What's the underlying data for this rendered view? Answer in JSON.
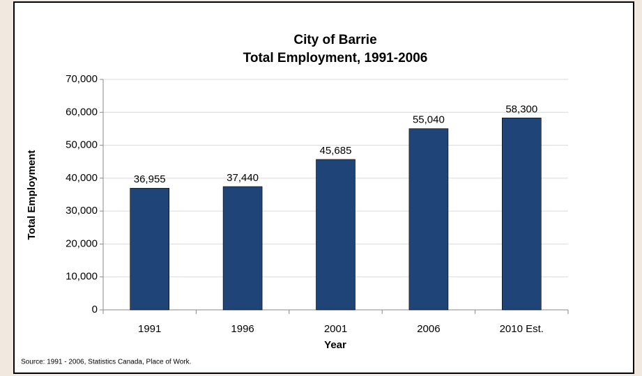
{
  "chart_data": {
    "type": "bar",
    "title": "City of Barrie",
    "subtitle": "Total Employment, 1991-2006",
    "x_label": "Year",
    "y_label": "Total Employment",
    "source": "Source: 1991 - 2006, Statistics Canada, Place of Work.",
    "categories": [
      "1991",
      "1996",
      "2001",
      "2006",
      "2010 Est."
    ],
    "values": [
      36955,
      37440,
      45685,
      55040,
      58300
    ],
    "value_labels": [
      "36,955",
      "37,440",
      "45,685",
      "55,040",
      "58,300"
    ],
    "color": "#1f4478",
    "ylim": [
      0,
      70000
    ],
    "yticks": [
      0,
      {
        "value": 10000,
        "label": "10,000"
      },
      {
        "value": 20000,
        "label": "20,000"
      },
      {
        "value": 30000,
        "label": "30,000"
      },
      {
        "value": 40000,
        "label": "40,000"
      },
      {
        "value": 50000,
        "label": "50,000"
      },
      {
        "value": 60000,
        "label": "60,000"
      },
      {
        "value": 70000,
        "label": "70,000"
      }
    ],
    "grid": true
  }
}
